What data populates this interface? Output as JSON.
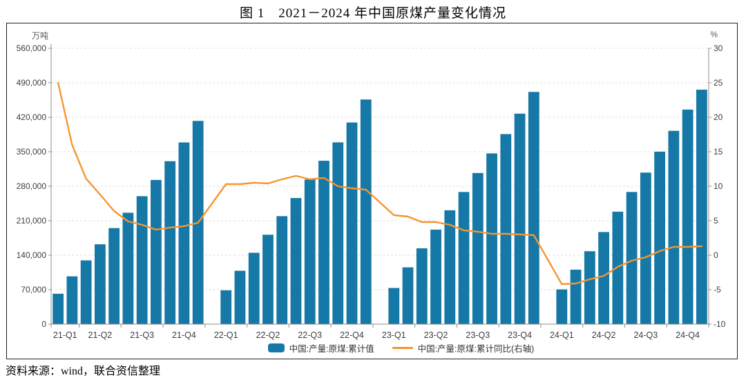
{
  "title": "图 1　2021－2024 年中国原煤产量变化情况",
  "source_note": "资料来源：wind，联合资信整理",
  "colors": {
    "bar": "#1678A6",
    "line": "#F6952F",
    "grid": "#dcdcdc",
    "axis": "#8c8c8c",
    "tick_label": "#3d3d3d",
    "unit_label": "#595959",
    "frame": "#1f1f1f"
  },
  "chart_data": {
    "type": "bar",
    "title": "图 1　2021－2024 年中国原煤产量变化情况",
    "left_axis": {
      "unit": "万吨",
      "min": 0,
      "max": 560000,
      "step": 70000
    },
    "right_axis": {
      "unit": "%",
      "min": -10,
      "max": 30,
      "step": 5
    },
    "grid": "horizontal-dashed",
    "legend_position": "bottom-center",
    "x_tick_labels": [
      "21-Q1",
      "21-Q2",
      "21-Q3",
      "21-Q4",
      "22-Q1",
      "22-Q2",
      "22-Q3",
      "22-Q4",
      "23-Q1",
      "23-Q2",
      "23-Q3",
      "23-Q4",
      "24-Q1",
      "24-Q2",
      "24-Q3",
      "24-Q4"
    ],
    "x": [
      "2021-02",
      "2021-03",
      "2021-04",
      "2021-05",
      "2021-06",
      "2021-07",
      "2021-08",
      "2021-09",
      "2021-10",
      "2021-11",
      "2021-12",
      "2022-02",
      "2022-03",
      "2022-04",
      "2022-05",
      "2022-06",
      "2022-07",
      "2022-08",
      "2022-09",
      "2022-10",
      "2022-11",
      "2022-12",
      "2023-02",
      "2023-03",
      "2023-04",
      "2023-05",
      "2023-06",
      "2023-07",
      "2023-08",
      "2023-09",
      "2023-10",
      "2023-11",
      "2023-12",
      "2024-02",
      "2024-03",
      "2024-04",
      "2024-05",
      "2024-06",
      "2024-07",
      "2024-08",
      "2024-09",
      "2024-10",
      "2024-11",
      "2024-12"
    ],
    "series": [
      {
        "name": "中国:产量:原煤:累计值",
        "type": "bar",
        "axis": "left",
        "color": "#1678A6",
        "values": [
          61760,
          97056,
          129445,
          162097,
          194976,
          226169,
          259725,
          292674,
          330800,
          368900,
          412600,
          68660,
          108342,
          144838,
          181518,
          219231,
          255979,
          293565,
          331699,
          368999,
          409351,
          456000,
          73423,
          115334,
          153900,
          191900,
          231100,
          268300,
          306800,
          346600,
          385800,
          427300,
          471400,
          70527,
          110600,
          148000,
          187000,
          228300,
          268300,
          307600,
          350100,
          392400,
          435600,
          476000
        ]
      },
      {
        "name": "中国:产量:原煤:累计同比(右轴)",
        "type": "line",
        "axis": "right",
        "color": "#F6952F",
        "values": [
          25.0,
          16.0,
          11.1,
          8.8,
          6.4,
          4.9,
          4.4,
          3.7,
          4.0,
          4.2,
          4.7,
          10.3,
          10.3,
          10.5,
          10.4,
          11.0,
          11.5,
          11.0,
          11.2,
          10.0,
          9.7,
          9.5,
          5.8,
          5.6,
          4.8,
          4.8,
          4.4,
          3.6,
          3.4,
          3.1,
          3.1,
          3.0,
          2.9,
          -4.2,
          -4.1,
          -3.5,
          -3.0,
          -1.7,
          -0.8,
          -0.3,
          0.6,
          1.2,
          1.2,
          1.3
        ]
      }
    ]
  }
}
